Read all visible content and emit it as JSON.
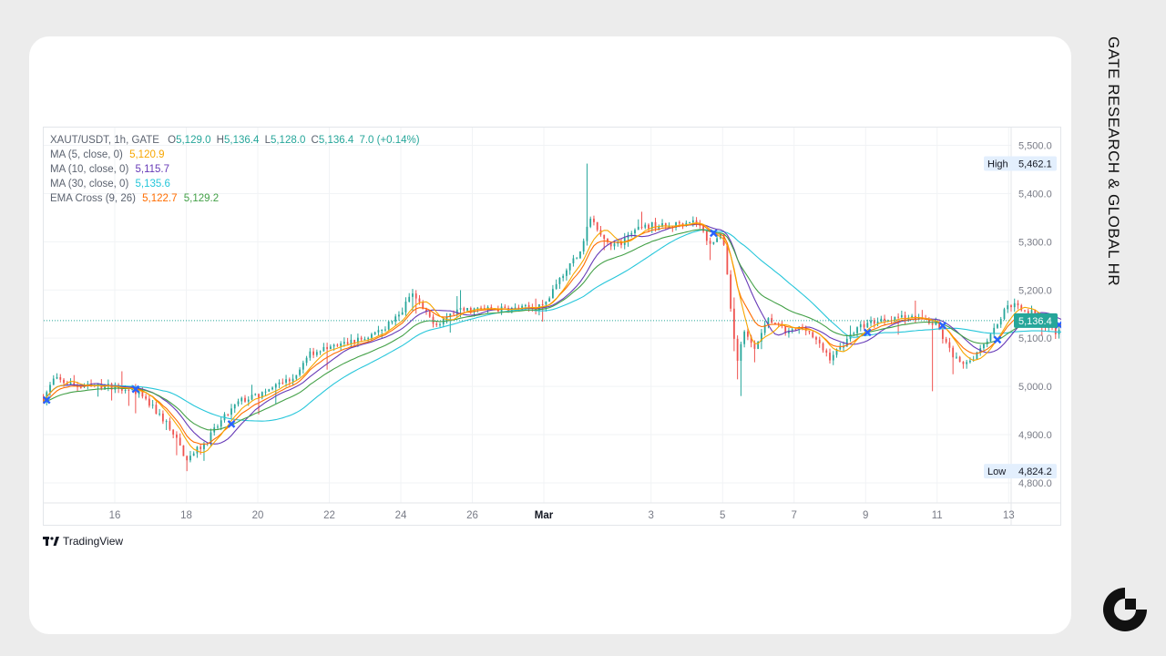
{
  "side_title": "GATE RESEARCH & GLOBAL HR",
  "branding": {
    "tradingview_label": "TradingView"
  },
  "legend": {
    "symbol": "XAUT/USDT, 1h, GATE",
    "open_label": "O",
    "open": "5,129.0",
    "high_label": "H",
    "high": "5,136.4",
    "low_label": "L",
    "low": "5,128.0",
    "close_label": "C",
    "close": "5,136.4",
    "change": "7.0 (+0.14%)",
    "ma5_label": "MA (5, close, 0)",
    "ma5_value": "5,120.9",
    "ma10_label": "MA (10, close, 0)",
    "ma10_value": "5,115.7",
    "ma30_label": "MA (30, close, 0)",
    "ma30_value": "5,135.6",
    "ema_label": "EMA Cross (9, 26)",
    "ema_fast_value": "5,122.7",
    "ema_slow_value": "5,129.2"
  },
  "colors": {
    "up": "#26a69a",
    "down": "#ef5350",
    "ma5": "#f7a600",
    "ma10": "#673ab7",
    "ma30": "#26c6da",
    "ema_fast": "#ff6d00",
    "ema_slow": "#43a047",
    "cross_marker": "#2962ff",
    "price_tag": "#26a69a"
  },
  "chart_data": {
    "type": "candlestick",
    "symbol": "XAUT/USDT",
    "interval": "1h",
    "ylim": [
      4790,
      5540
    ],
    "y_ticks": [
      "5,500.0",
      "5,400.0",
      "5,300.0",
      "5,200.0",
      "5,100.0",
      "5,000.0",
      "4,900.0",
      "4,800.0"
    ],
    "x_ticks": [
      "16",
      "18",
      "20",
      "22",
      "24",
      "26",
      "Mar",
      "3",
      "5",
      "7",
      "9",
      "11",
      "13"
    ],
    "high_marker": {
      "label": "High",
      "value_text": "5,462.1",
      "value": 5462.1
    },
    "low_marker": {
      "label": "Low",
      "value_text": "4,824.2",
      "value": 4824.2
    },
    "last_price": {
      "value_text": "5,136.4",
      "value": 5136.4
    },
    "price_keypoints": [
      [
        14.0,
        4975
      ],
      [
        14.3,
        5015
      ],
      [
        15.0,
        5000
      ],
      [
        16.0,
        5000
      ],
      [
        16.5,
        4995
      ],
      [
        17.0,
        4960
      ],
      [
        17.5,
        4920
      ],
      [
        18.0,
        4850
      ],
      [
        18.5,
        4880
      ],
      [
        19.0,
        4930
      ],
      [
        19.5,
        4970
      ],
      [
        20.0,
        4980
      ],
      [
        21.0,
        5020
      ],
      [
        21.5,
        5070
      ],
      [
        22.0,
        5080
      ],
      [
        23.0,
        5100
      ],
      [
        23.5,
        5120
      ],
      [
        24.0,
        5150
      ],
      [
        24.3,
        5195
      ],
      [
        24.7,
        5150
      ],
      [
        25.0,
        5130
      ],
      [
        25.5,
        5155
      ],
      [
        26.0,
        5160
      ],
      [
        27.0,
        5160
      ],
      [
        28.0,
        5165
      ],
      [
        28.5,
        5230
      ],
      [
        29.0,
        5280
      ],
      [
        29.3,
        5350
      ],
      [
        29.6,
        5310
      ],
      [
        30.0,
        5290
      ],
      [
        30.5,
        5320
      ],
      [
        31.0,
        5335
      ],
      [
        31.5,
        5330
      ],
      [
        32.0,
        5345
      ],
      [
        32.3,
        5340
      ],
      [
        32.6,
        5300
      ],
      [
        33.0,
        5310
      ],
      [
        33.4,
        5050
      ],
      [
        33.6,
        5110
      ],
      [
        33.9,
        5080
      ],
      [
        34.3,
        5140
      ],
      [
        34.8,
        5110
      ],
      [
        35.3,
        5125
      ],
      [
        35.7,
        5085
      ],
      [
        36.0,
        5060
      ],
      [
        36.3,
        5080
      ],
      [
        36.6,
        5110
      ],
      [
        37.0,
        5130
      ],
      [
        37.5,
        5140
      ],
      [
        38.0,
        5145
      ],
      [
        38.6,
        5140
      ],
      [
        39.0,
        5125
      ],
      [
        39.3,
        5080
      ],
      [
        39.7,
        5040
      ],
      [
        40.0,
        5060
      ],
      [
        40.5,
        5110
      ],
      [
        41.0,
        5170
      ],
      [
        41.3,
        5165
      ],
      [
        41.7,
        5150
      ],
      [
        42.0,
        5130
      ],
      [
        42.4,
        5110
      ],
      [
        42.6,
        5136.4
      ]
    ]
  }
}
